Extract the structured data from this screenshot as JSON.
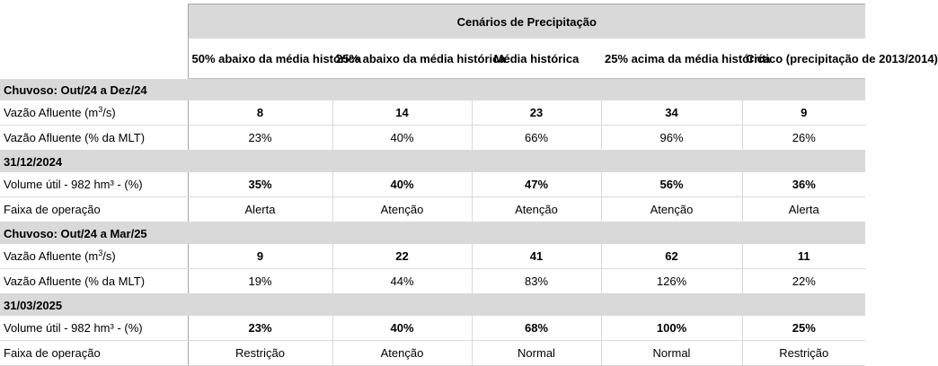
{
  "title": "Cenários de Precipitação",
  "columns": [
    "50% abaixo da média histórica",
    "25% abaixo da média histórica",
    "Média histórica",
    "25% acima da média histórica",
    "Crítico (precipitação de 2013/2014)"
  ],
  "sections": [
    {
      "name": "Chuvoso: Out/24 a Dez/24",
      "rows": [
        {
          "label_pre": "Vazão Afluente (m",
          "label_sup": "3",
          "label_post": "/s)",
          "bold": true,
          "values": [
            "8",
            "14",
            "23",
            "34",
            "9"
          ]
        },
        {
          "label": "Vazão Afluente (% da MLT)",
          "bold": false,
          "values": [
            "23%",
            "40%",
            "66%",
            "96%",
            "26%"
          ]
        }
      ]
    },
    {
      "name": "31/12/2024",
      "rows": [
        {
          "label": "Volume útil - 982 hm³ - (%)",
          "bold": true,
          "values": [
            "35%",
            "40%",
            "47%",
            "56%",
            "36%"
          ]
        },
        {
          "label": "Faixa de operação",
          "bold": false,
          "values": [
            "Alerta",
            "Atenção",
            "Atenção",
            "Atenção",
            "Alerta"
          ]
        }
      ]
    },
    {
      "name": "Chuvoso: Out/24 a Mar/25",
      "rows": [
        {
          "label_pre": "Vazão Afluente (m",
          "label_sup": "3",
          "label_post": "/s)",
          "bold": true,
          "values": [
            "9",
            "22",
            "41",
            "62",
            "11"
          ]
        },
        {
          "label": "Vazão Afluente (% da MLT)",
          "bold": false,
          "values": [
            "19%",
            "44%",
            "83%",
            "126%",
            "22%"
          ]
        }
      ]
    },
    {
      "name": "31/03/2025",
      "rows": [
        {
          "label": "Volume útil - 982 hm³ - (%)",
          "bold": true,
          "values": [
            "23%",
            "40%",
            "68%",
            "100%",
            "25%"
          ]
        },
        {
          "label": "Faixa de operação",
          "bold": false,
          "values": [
            "Restrição",
            "Atenção",
            "Normal",
            "Normal",
            "Restrição"
          ]
        }
      ]
    }
  ]
}
